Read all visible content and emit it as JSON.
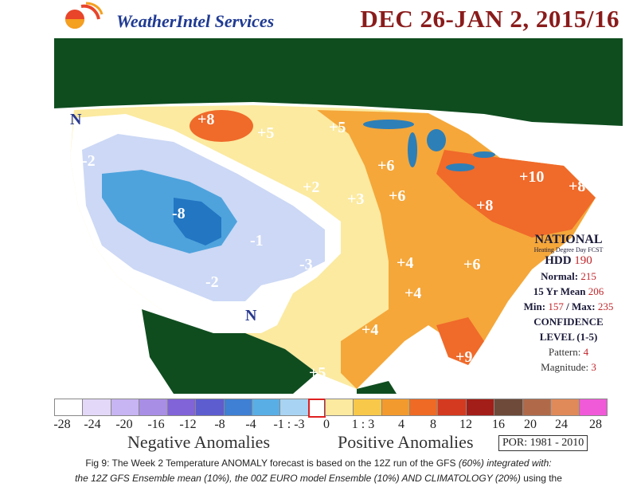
{
  "header": {
    "brand": "WeatherIntel Services",
    "title": "DEC 26-JAN 2, 2015/16"
  },
  "map": {
    "marks": [
      "N",
      "N"
    ],
    "anomaly_labels": [
      "+8",
      "+5",
      "+5",
      "-2",
      "+6",
      "+8",
      "+10",
      "+8",
      "-8",
      "+2",
      "+3",
      "+6",
      "+8",
      "-1",
      "-3",
      "+4",
      "+6",
      "-2",
      "+4",
      "+4",
      "+9",
      "+5"
    ],
    "colors": {
      "canada": "#0f4d1f",
      "mexico": "#0f4d1f",
      "ocean": "#ffffff",
      "lakes": "#2d7fb8",
      "neutral": "#ffffff",
      "neg_1_3": "#ccd8f5",
      "neg_4": "#9bbbf0",
      "neg_8": "#4ea3dd",
      "neg_deep": "#2276c2",
      "pos_1_3": "#fbeaa0",
      "pos_4": "#f5a73a",
      "pos_8": "#f06a2a"
    }
  },
  "stats": {
    "national": "NATIONAL",
    "subtitle": "Heating Degree Day FCST",
    "hdd_label": "HDD",
    "hdd_value": "190",
    "normal_label": "Normal:",
    "normal_value": "215",
    "mean_label": "15 Yr Mean",
    "mean_value": "206",
    "min_label": "Min:",
    "min_value": "157",
    "max_label": "/ Max:",
    "max_value": "235",
    "confidence_title": "CONFIDENCE",
    "confidence_level": "LEVEL (1-5)",
    "pattern_label": "Pattern:",
    "pattern_value": "4",
    "magnitude_label": "Magnitude:",
    "magnitude_value": "3"
  },
  "scale": {
    "colors": [
      "#ffffff",
      "#e3d8f7",
      "#c7b4f2",
      "#a98ee6",
      "#8164d8",
      "#5d5dd0",
      "#3f7fd4",
      "#5aaee6",
      "#a9d3f2",
      "#ffffff",
      "#fbeaa0",
      "#f7c84a",
      "#f39a2e",
      "#ee6a25",
      "#d43a20",
      "#a31e18",
      "#6e4a3a",
      "#b06a4a",
      "#e08a5a",
      "#f05ad8"
    ],
    "ticks": [
      "-28",
      "-24",
      "-20",
      "-16",
      "-12",
      "-8",
      "-4",
      "-1 : -3",
      "0",
      "1 : 3",
      "4",
      "8",
      "12",
      "16",
      "20",
      "24",
      "28"
    ],
    "negative_label": "Negative Anomalies",
    "positive_label": "Positive Anomalies",
    "por": "POR: 1981 - 2010"
  },
  "caption": {
    "line1_a": "Fig 9: The Week 2 Temperature ANOMALY forecast is based on the 12Z run of the GFS ",
    "line1_b": "(60%) integrated with:",
    "line2_a": "the 12Z GFS Ensemble mean (10%), the 00Z EURO model Ensemble (10%) AND CLIMATOLOGY (20%)",
    "line2_b": " using the"
  }
}
